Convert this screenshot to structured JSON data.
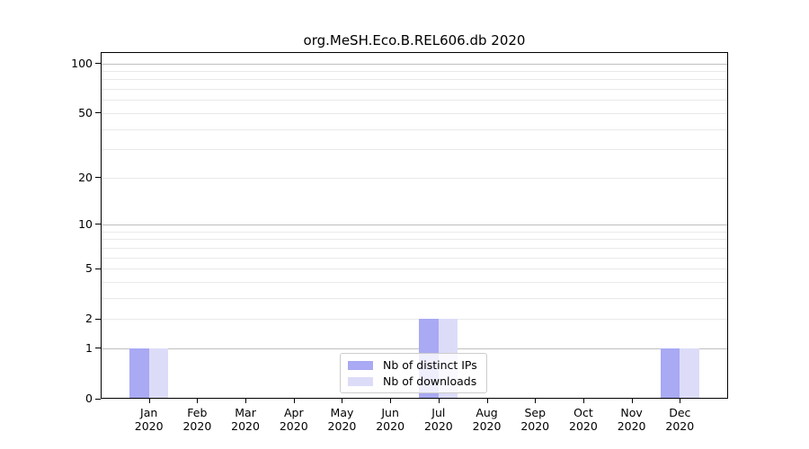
{
  "window": {
    "background": "#ffffff"
  },
  "chart_data": {
    "type": "bar",
    "title": "org.MeSH.Eco.B.REL606.db 2020",
    "categories": [
      "Jan",
      "Feb",
      "Mar",
      "Apr",
      "May",
      "Jun",
      "Jul",
      "Aug",
      "Sep",
      "Oct",
      "Nov",
      "Dec"
    ],
    "category_sublabel": "2020",
    "series": [
      {
        "name": "Nb of distinct IPs",
        "color": "#a9a9f4",
        "values": [
          1,
          0,
          0,
          0,
          0,
          0,
          2,
          0,
          0,
          0,
          0,
          1
        ]
      },
      {
        "name": "Nb of downloads",
        "color": "#dcdcf9",
        "values": [
          1,
          0,
          0,
          0,
          0,
          0,
          2,
          0,
          0,
          0,
          0,
          1
        ]
      }
    ],
    "xlabel": "",
    "ylabel": "",
    "yscale": "log1p",
    "ylim": [
      0,
      117
    ],
    "yticks": [
      0,
      1,
      2,
      5,
      10,
      20,
      50,
      100
    ],
    "gridlines": {
      "minor": [
        2,
        3,
        4,
        5,
        6,
        7,
        8,
        9,
        20,
        30,
        40,
        50,
        60,
        70,
        80,
        90
      ],
      "major": [
        1,
        10,
        100
      ],
      "minor_color": "#e9e9e9",
      "major_color": "#bfbfbf"
    },
    "legend": {
      "position": "lower center",
      "entries": [
        "Nb of distinct IPs",
        "Nb of downloads"
      ]
    },
    "axis_color": "#000000",
    "text_color": "#000000",
    "grid": true
  }
}
